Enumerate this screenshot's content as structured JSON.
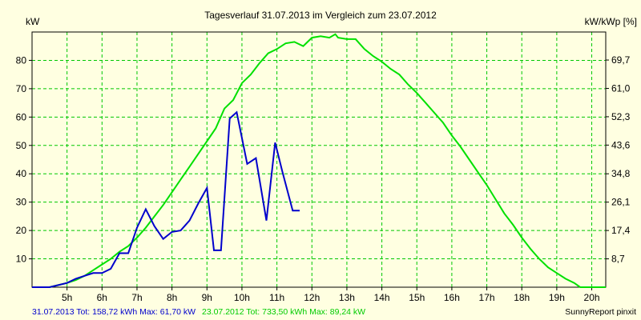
{
  "chart_data": {
    "type": "line",
    "title": "Tagesverlauf 31.07.2013 im Vergleich zum 23.07.2012",
    "ylabel_left": "kW",
    "ylabel_right": "kW/kWp [%]",
    "xlabel": "",
    "xlim": [
      4.0,
      20.4
    ],
    "ylim": [
      0,
      90
    ],
    "x_ticks": [
      5,
      6,
      7,
      8,
      9,
      10,
      11,
      12,
      13,
      14,
      15,
      16,
      17,
      18,
      19,
      20
    ],
    "x_tick_labels": [
      "5h",
      "6h",
      "7h",
      "8h",
      "9h",
      "10h",
      "11h",
      "12h",
      "13h",
      "14h",
      "15h",
      "16h",
      "17h",
      "18h",
      "19h",
      "20h"
    ],
    "y_ticks_left": [
      10,
      20,
      30,
      40,
      50,
      60,
      70,
      80
    ],
    "y_ticks_right": [
      {
        "value": 8.7,
        "label": "8,7"
      },
      {
        "value": 17.4,
        "label": "17,4"
      },
      {
        "value": 26.1,
        "label": "26,1"
      },
      {
        "value": 34.8,
        "label": "34,8"
      },
      {
        "value": 43.6,
        "label": "43,6"
      },
      {
        "value": 52.3,
        "label": "52,3"
      },
      {
        "value": 61.0,
        "label": "61,0"
      },
      {
        "value": 69.7,
        "label": "69,7"
      }
    ],
    "right_axis_max": 78.3,
    "grid": true,
    "series": [
      {
        "name": "23.07.2012",
        "color": "#00e000",
        "x": [
          4.0,
          4.5,
          5.0,
          5.25,
          5.5,
          5.75,
          6.0,
          6.25,
          6.5,
          6.75,
          7.0,
          7.25,
          7.5,
          7.75,
          8.0,
          8.25,
          8.5,
          8.75,
          9.0,
          9.25,
          9.5,
          9.75,
          10.0,
          10.25,
          10.5,
          10.75,
          11.0,
          11.25,
          11.5,
          11.75,
          12.0,
          12.25,
          12.5,
          12.67,
          12.75,
          13.0,
          13.25,
          13.5,
          13.75,
          14.0,
          14.25,
          14.5,
          14.75,
          15.0,
          15.25,
          15.5,
          15.75,
          16.0,
          16.25,
          16.5,
          16.75,
          17.0,
          17.25,
          17.5,
          17.75,
          18.0,
          18.25,
          18.5,
          18.75,
          19.0,
          19.25,
          19.5,
          19.67,
          19.85,
          20.0,
          20.4
        ],
        "values": [
          0,
          0,
          1.5,
          2.5,
          4,
          6,
          8,
          10,
          12.5,
          14.5,
          17.5,
          21,
          25,
          29,
          33.5,
          38,
          42.5,
          47,
          51.5,
          56,
          63,
          66,
          72,
          75,
          79,
          82.5,
          84,
          86,
          86.5,
          85,
          88,
          88.5,
          88,
          89.2,
          88,
          87.5,
          87.5,
          84,
          81.5,
          79.5,
          77,
          75,
          71.5,
          68.5,
          65,
          61.5,
          58,
          53.5,
          49.5,
          45,
          40.5,
          36,
          31,
          26,
          22,
          17.5,
          13.5,
          10,
          7,
          5,
          3,
          1.5,
          0,
          0,
          0,
          0
        ]
      },
      {
        "name": "31.07.2013",
        "color": "#0000cc",
        "x": [
          4.0,
          4.5,
          5.0,
          5.25,
          5.5,
          5.75,
          6.0,
          6.25,
          6.5,
          6.75,
          7.0,
          7.25,
          7.5,
          7.75,
          8.0,
          8.25,
          8.5,
          8.75,
          9.0,
          9.2,
          9.4,
          9.65,
          9.85,
          10.15,
          10.4,
          10.7,
          10.95,
          11.15,
          11.45,
          11.65
        ],
        "values": [
          0,
          0,
          1.5,
          3,
          4,
          5,
          5,
          6.5,
          12,
          12,
          21,
          27.5,
          21.5,
          17,
          19.5,
          20,
          23.5,
          29.5,
          35,
          13,
          13,
          59.5,
          61.7,
          43.5,
          45.5,
          23.5,
          51,
          41,
          27,
          27
        ]
      }
    ],
    "footer": {
      "series1_text": "31.07.2013 Tot: 158,72 kWh Max: 61,70 kW",
      "series2_text": "23.07.2012 Tot: 733,50 kWh Max: 89,24 kW",
      "brand_text": "SunnyReport pinxit"
    }
  },
  "colors": {
    "background": "#ffffe1",
    "grid": "#00c800",
    "axis": "#000000",
    "series1": "#0000cc",
    "series2": "#00e000"
  }
}
